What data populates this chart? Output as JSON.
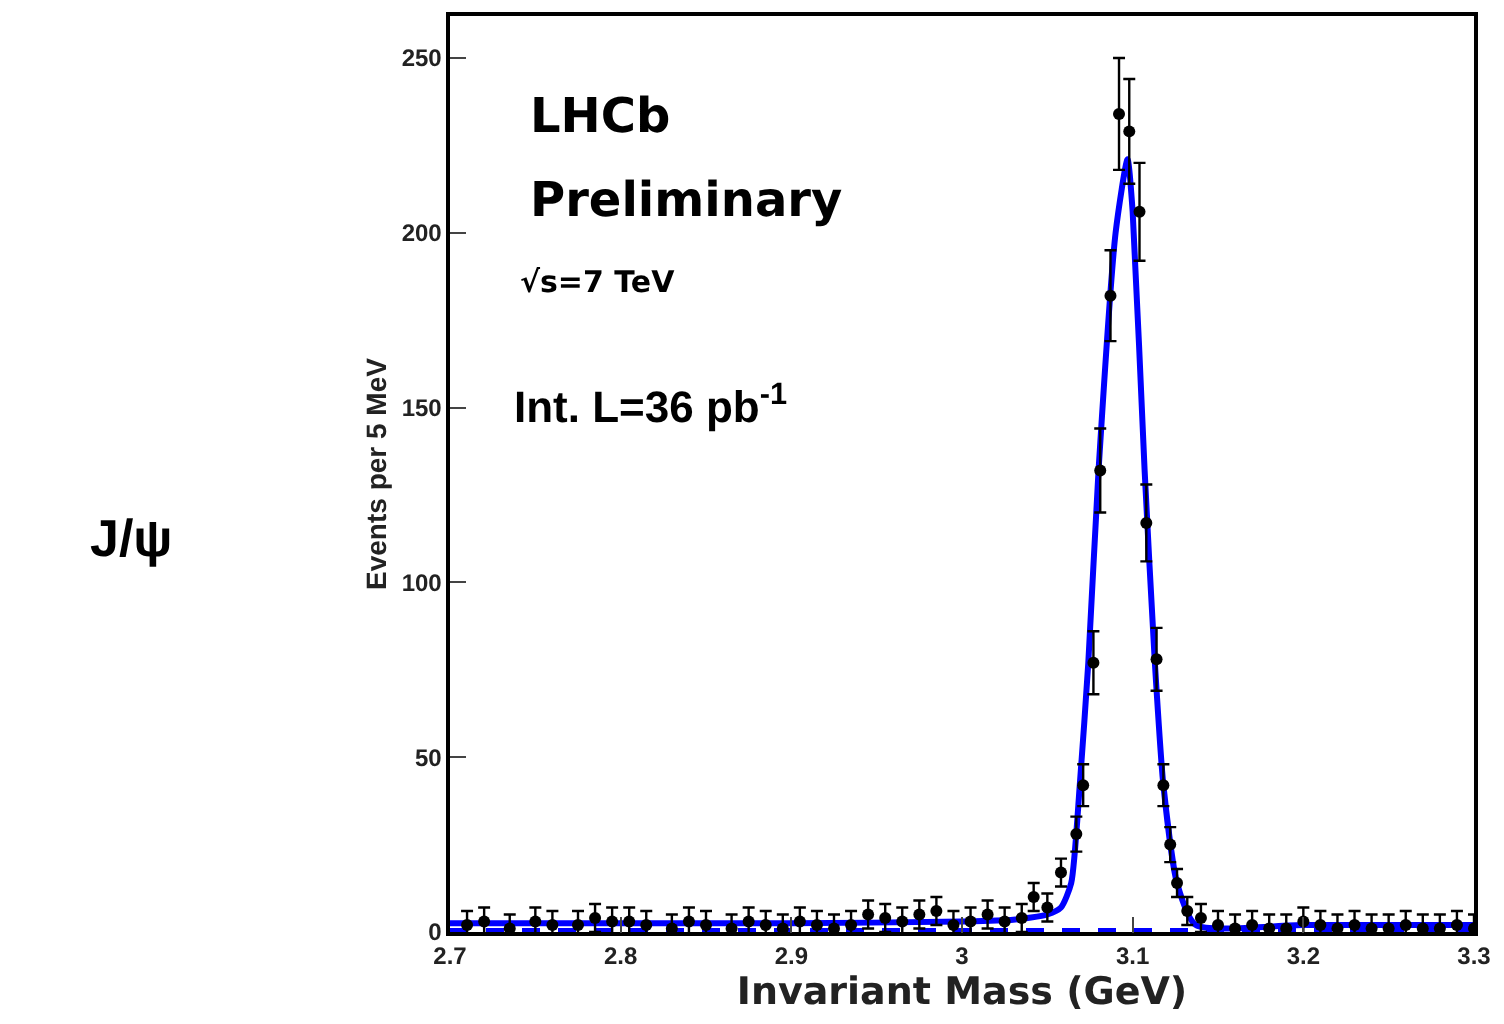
{
  "chart_data": {
    "type": "scatter",
    "xlabel": "Invariant Mass (GeV)",
    "ylabel": "Events per 5 MeV",
    "annotations": [
      "J/ψ",
      "LHCb",
      "Preliminary",
      "√s=7 TeV",
      "Int. L=36 pb$^{-1}$"
    ],
    "xlim": [
      2.7,
      3.3
    ],
    "ylim": [
      0,
      262
    ],
    "xticks": [
      2.7,
      2.8,
      2.9,
      3,
      3.1,
      3.2,
      3.3
    ],
    "yticks": [
      0,
      50,
      100,
      150,
      200,
      250
    ],
    "series": [
      {
        "type": "line",
        "color": "#0000ff",
        "line_style": "dashed",
        "marker": "none",
        "x": [
          2.7,
          3.3
        ],
        "values": [
          0.3,
          0.3
        ]
      },
      {
        "type": "line",
        "color": "#0000ff",
        "line_style": "solid",
        "marker": "none",
        "x": [
          2.7,
          2.9,
          3.0,
          3.03,
          3.05,
          3.058,
          3.064,
          3.069,
          3.074,
          3.08,
          3.09,
          3.097,
          3.1,
          3.107,
          3.113,
          3.118,
          3.126,
          3.137,
          3.2,
          3.3
        ],
        "values": [
          2.5,
          2.5,
          3,
          3.5,
          5,
          7,
          14,
          42,
          77,
          132,
          200,
          221,
          206,
          132,
          77,
          42,
          14,
          2,
          2,
          2
        ]
      },
      {
        "marker": "circle",
        "color": "#000000",
        "x": [
          2.71,
          2.72,
          2.735,
          2.75,
          2.76,
          2.775,
          2.785,
          2.795,
          2.805,
          2.815,
          2.83,
          2.84,
          2.85,
          2.865,
          2.875,
          2.885,
          2.895,
          2.905,
          2.915,
          2.925,
          2.935,
          2.945,
          2.955,
          2.965,
          2.975,
          2.985,
          2.995,
          3.005,
          3.015,
          3.025,
          3.035,
          3.042,
          3.05,
          3.058,
          3.067,
          3.071,
          3.077,
          3.081,
          3.087,
          3.092,
          3.098,
          3.104,
          3.108,
          3.114,
          3.118,
          3.122,
          3.126,
          3.132,
          3.14,
          3.15,
          3.16,
          3.17,
          3.18,
          3.19,
          3.2,
          3.21,
          3.22,
          3.23,
          3.24,
          3.25,
          3.26,
          3.27,
          3.28,
          3.29,
          3.3
        ],
        "values": [
          2,
          3,
          1,
          3,
          2,
          2,
          4,
          3,
          3,
          2,
          1,
          3,
          2,
          1,
          3,
          2,
          1,
          3,
          2,
          1,
          2,
          5,
          4,
          3,
          5,
          6,
          2,
          3,
          5,
          3,
          4,
          10,
          7,
          17,
          28,
          42,
          77,
          132,
          182,
          234,
          229,
          206,
          117,
          78,
          42,
          25,
          14,
          6,
          4,
          2,
          1,
          2,
          1,
          1,
          3,
          2,
          1,
          2,
          1,
          1,
          2,
          1,
          1,
          2,
          1
        ],
        "errors": [
          4,
          4,
          4,
          4,
          4,
          4,
          4,
          4,
          4,
          4,
          4,
          4,
          4,
          4,
          4,
          4,
          4,
          4,
          4,
          4,
          4,
          4,
          4,
          4,
          4,
          4,
          4,
          4,
          4,
          4,
          4,
          4,
          4,
          4,
          5,
          6,
          9,
          12,
          13,
          16,
          15,
          14,
          11,
          9,
          6,
          5,
          4,
          4,
          4,
          4,
          4,
          4,
          4,
          4,
          4,
          4,
          4,
          4,
          4,
          4,
          4,
          4,
          4,
          4,
          4
        ]
      }
    ]
  }
}
